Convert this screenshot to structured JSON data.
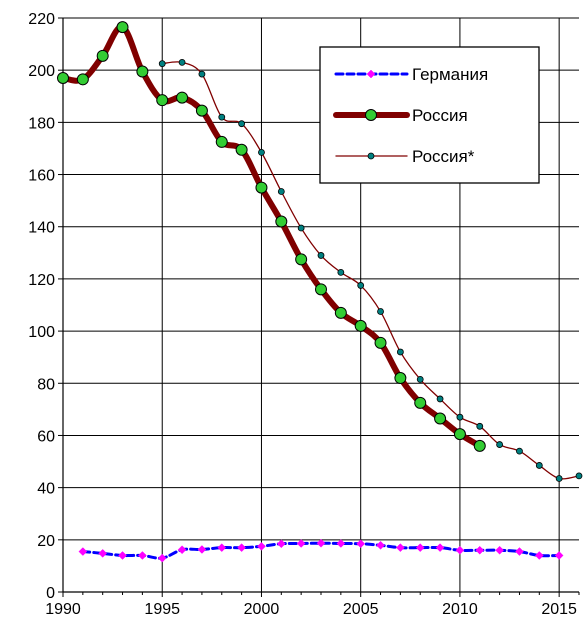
{
  "chart_data": {
    "type": "line",
    "title": "",
    "xlabel": "",
    "ylabel": "",
    "xlim": [
      1990,
      2016
    ],
    "ylim": [
      0,
      220
    ],
    "x_ticks": [
      1990,
      1995,
      2000,
      2005,
      2010,
      2015
    ],
    "y_ticks": [
      0,
      20,
      40,
      60,
      80,
      100,
      120,
      140,
      160,
      180,
      200,
      220
    ],
    "grid": true,
    "legend_position": "top-right",
    "series": [
      {
        "name": "Германия",
        "color": "#0000ff",
        "marker": "diamond",
        "marker_color": "#ff00ff",
        "line_style": "dashed",
        "points": [
          [
            1991,
            15.5
          ],
          [
            1992,
            14.8
          ],
          [
            1993,
            14.0
          ],
          [
            1994,
            14.0
          ],
          [
            1995,
            13.0
          ],
          [
            1996,
            16.2
          ],
          [
            1997,
            16.3
          ],
          [
            1998,
            17.0
          ],
          [
            1999,
            17.0
          ],
          [
            2000,
            17.5
          ],
          [
            2001,
            18.5
          ],
          [
            2002,
            18.6
          ],
          [
            2003,
            18.7
          ],
          [
            2004,
            18.6
          ],
          [
            2005,
            18.5
          ],
          [
            2006,
            17.9
          ],
          [
            2007,
            17.0
          ],
          [
            2008,
            17.0
          ],
          [
            2009,
            17.0
          ],
          [
            2010,
            16.0
          ],
          [
            2011,
            16.0
          ],
          [
            2012,
            16.0
          ],
          [
            2013,
            15.5
          ],
          [
            2014,
            14.0
          ],
          [
            2015,
            14.0
          ]
        ]
      },
      {
        "name": "Россия",
        "color": "#800000",
        "marker": "circle",
        "marker_color": "#33cc33",
        "line_style": "solid-thick",
        "points": [
          [
            1990,
            197.0
          ],
          [
            1991,
            196.5
          ],
          [
            1992,
            205.5
          ],
          [
            1993,
            216.5
          ],
          [
            1994,
            199.5
          ],
          [
            1995,
            188.5
          ],
          [
            1996,
            189.5
          ],
          [
            1997,
            184.5
          ],
          [
            1998,
            172.5
          ],
          [
            1999,
            169.5
          ],
          [
            2000,
            155.0
          ],
          [
            2001,
            142.0
          ],
          [
            2002,
            127.5
          ],
          [
            2003,
            116.0
          ],
          [
            2004,
            107.0
          ],
          [
            2005,
            102.0
          ],
          [
            2006,
            95.5
          ],
          [
            2007,
            82.0
          ],
          [
            2008,
            72.5
          ],
          [
            2009,
            66.5
          ],
          [
            2010,
            60.5
          ],
          [
            2011,
            56.0
          ]
        ]
      },
      {
        "name": "Россия*",
        "color": "#800000",
        "marker": "small-circle",
        "marker_color": "#008080",
        "line_style": "solid-thin",
        "points": [
          [
            1995,
            202.5
          ],
          [
            1996,
            203.0
          ],
          [
            1997,
            198.5
          ],
          [
            1998,
            182.0
          ],
          [
            1999,
            179.5
          ],
          [
            2000,
            168.5
          ],
          [
            2001,
            153.5
          ],
          [
            2002,
            139.5
          ],
          [
            2003,
            129.0
          ],
          [
            2004,
            122.5
          ],
          [
            2005,
            117.5
          ],
          [
            2006,
            107.5
          ],
          [
            2007,
            92.0
          ],
          [
            2008,
            81.5
          ],
          [
            2009,
            74.0
          ],
          [
            2010,
            67.0
          ],
          [
            2011,
            63.5
          ],
          [
            2012,
            56.5
          ],
          [
            2013,
            54.0
          ],
          [
            2014,
            48.5
          ],
          [
            2015,
            43.5
          ],
          [
            2016,
            44.5
          ]
        ]
      }
    ]
  }
}
